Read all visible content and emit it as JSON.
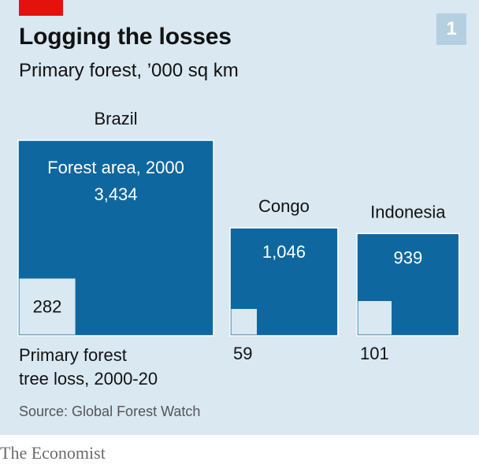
{
  "header": {
    "title": "Logging the losses",
    "subtitle": "Primary forest, ’000 sq km",
    "badge": "1"
  },
  "chart_data": {
    "type": "proportional-squares",
    "title": "Logging the losses",
    "subtitle": "Primary forest, ’000 sq km",
    "units": "’000 sq km",
    "area_label": "Forest area, 2000",
    "loss_label_line1": "Primary forest",
    "loss_label_line2": "tree loss, 2000-20",
    "countries": [
      {
        "name": "Brazil",
        "forest_area_2000": 3434,
        "forest_area_label": "3,434",
        "tree_loss": 282,
        "tree_loss_label": "282"
      },
      {
        "name": "Congo",
        "forest_area_2000": 1046,
        "forest_area_label": "1,046",
        "tree_loss": 59,
        "tree_loss_label": "59"
      },
      {
        "name": "Indonesia",
        "forest_area_2000": 939,
        "forest_area_label": "939",
        "tree_loss": 101,
        "tree_loss_label": "101"
      }
    ],
    "colors": {
      "forest": "#0f67a0",
      "loss": "#d9e8f1",
      "border": "#ffffff"
    }
  },
  "footer": {
    "source": "Source: Global Forest Watch",
    "brand": "The Economist"
  }
}
